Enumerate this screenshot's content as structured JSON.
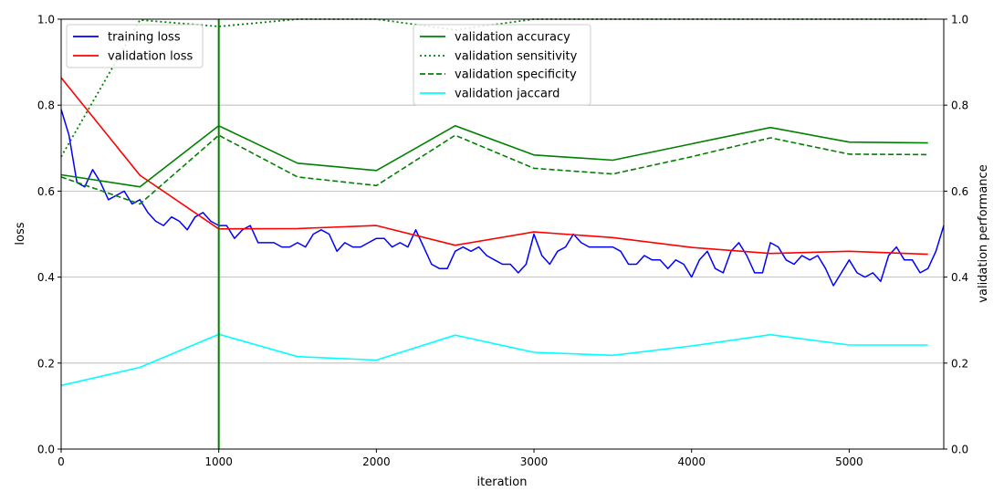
{
  "chart_data": {
    "type": "line",
    "xlabel": "iteration",
    "ylabel_left": "loss",
    "ylabel_right": "validation performance",
    "xlim": [
      0,
      5600
    ],
    "ylim_left": [
      0.0,
      1.0
    ],
    "ylim_right": [
      0.0,
      1.0
    ],
    "x_ticks": [
      "0",
      "1000",
      "2000",
      "3000",
      "4000",
      "5000"
    ],
    "y_ticks_left": [
      "0.0",
      "0.2",
      "0.4",
      "0.6",
      "0.8",
      "1.0"
    ],
    "y_ticks_right": [
      "0.0",
      "0.2",
      "0.4",
      "0.6",
      "0.8",
      "1.0"
    ],
    "grid": "horizontal",
    "marker_line_x": 1000,
    "marker_line_color": "#008000",
    "legend_left": {
      "placement": "upper-left",
      "entries": [
        "training loss",
        "validation loss"
      ]
    },
    "legend_right": {
      "placement": "upper-center",
      "entries": [
        "validation accuracy",
        "validation sensitivity",
        "validation specificity",
        "validation jaccard"
      ]
    },
    "training_loss": {
      "name": "training loss",
      "color": "#0000ff",
      "axis": "left",
      "x": [
        0,
        50,
        100,
        150,
        200,
        250,
        300,
        350,
        400,
        450,
        500,
        550,
        600,
        650,
        700,
        750,
        800,
        850,
        900,
        950,
        1000,
        1050,
        1100,
        1150,
        1200,
        1250,
        1300,
        1350,
        1400,
        1450,
        1500,
        1550,
        1600,
        1650,
        1700,
        1750,
        1800,
        1850,
        1900,
        1950,
        2000,
        2050,
        2100,
        2150,
        2200,
        2250,
        2300,
        2350,
        2400,
        2450,
        2500,
        2550,
        2600,
        2650,
        2700,
        2750,
        2800,
        2850,
        2900,
        2950,
        3000,
        3050,
        3100,
        3150,
        3200,
        3250,
        3300,
        3350,
        3400,
        3450,
        3500,
        3550,
        3600,
        3650,
        3700,
        3750,
        3800,
        3850,
        3900,
        3950,
        4000,
        4050,
        4100,
        4150,
        4200,
        4250,
        4300,
        4350,
        4400,
        4450,
        4500,
        4550,
        4600,
        4650,
        4700,
        4750,
        4800,
        4850,
        4900,
        4950,
        5000,
        5050,
        5100,
        5150,
        5200,
        5250,
        5300,
        5350,
        5400,
        5450,
        5500,
        5550,
        5600
      ],
      "y": [
        0.79,
        0.73,
        0.62,
        0.61,
        0.65,
        0.62,
        0.58,
        0.59,
        0.6,
        0.57,
        0.58,
        0.55,
        0.53,
        0.52,
        0.54,
        0.53,
        0.51,
        0.54,
        0.55,
        0.53,
        0.52,
        0.52,
        0.49,
        0.51,
        0.52,
        0.48,
        0.48,
        0.48,
        0.47,
        0.47,
        0.48,
        0.47,
        0.5,
        0.51,
        0.5,
        0.46,
        0.48,
        0.47,
        0.47,
        0.48,
        0.49,
        0.49,
        0.47,
        0.48,
        0.47,
        0.51,
        0.47,
        0.43,
        0.42,
        0.42,
        0.46,
        0.47,
        0.46,
        0.47,
        0.45,
        0.44,
        0.43,
        0.43,
        0.41,
        0.43,
        0.5,
        0.45,
        0.43,
        0.46,
        0.47,
        0.5,
        0.48,
        0.47,
        0.47,
        0.47,
        0.47,
        0.46,
        0.43,
        0.43,
        0.45,
        0.44,
        0.44,
        0.42,
        0.44,
        0.43,
        0.4,
        0.44,
        0.46,
        0.42,
        0.41,
        0.46,
        0.48,
        0.45,
        0.41,
        0.41,
        0.48,
        0.47,
        0.44,
        0.43,
        0.45,
        0.44,
        0.45,
        0.42,
        0.38,
        0.41,
        0.44,
        0.41,
        0.4,
        0.41,
        0.39,
        0.45,
        0.47,
        0.44,
        0.44,
        0.41,
        0.42,
        0.46,
        0.52
      ]
    },
    "validation_loss": {
      "name": "validation loss",
      "color": "#ff0000",
      "axis": "left",
      "x": [
        0,
        500,
        1000,
        1500,
        2000,
        2500,
        3000,
        3500,
        4000,
        4500,
        5000,
        5500
      ],
      "y": [
        0.864,
        0.637,
        0.512,
        0.513,
        0.52,
        0.474,
        0.505,
        0.492,
        0.469,
        0.455,
        0.46,
        0.453
      ]
    },
    "validation_accuracy": {
      "name": "validation accuracy",
      "color": "#008000",
      "axis": "right",
      "x": [
        0,
        500,
        1000,
        1500,
        2000,
        2500,
        3000,
        3500,
        4000,
        4500,
        5000,
        5500
      ],
      "y": [
        0.638,
        0.61,
        0.752,
        0.665,
        0.648,
        0.752,
        0.684,
        0.672,
        0.71,
        0.748,
        0.714,
        0.712
      ]
    },
    "validation_sensitivity": {
      "name": "validation sensitivity",
      "color": "#008000",
      "axis": "right",
      "x": [
        0,
        500,
        1000,
        1500,
        2000,
        2500,
        3000,
        3500,
        4000,
        4500,
        5000,
        5500
      ],
      "y": [
        0.68,
        0.998,
        0.983,
        1.0,
        1.0,
        0.975,
        1.0,
        1.0,
        1.0,
        1.0,
        1.0,
        1.0
      ]
    },
    "validation_specificity": {
      "name": "validation specificity",
      "color": "#008000",
      "axis": "right",
      "x": [
        0,
        500,
        1000,
        1500,
        2000,
        2500,
        3000,
        3500,
        4000,
        4500,
        5000,
        5500
      ],
      "y": [
        0.633,
        0.57,
        0.73,
        0.633,
        0.613,
        0.73,
        0.653,
        0.64,
        0.68,
        0.724,
        0.686,
        0.685
      ]
    },
    "validation_jaccard": {
      "name": "validation jaccard",
      "color": "#00ffff",
      "axis": "right",
      "x": [
        0,
        500,
        1000,
        1500,
        2000,
        2500,
        3000,
        3500,
        4000,
        4500,
        5000,
        5500
      ],
      "y": [
        0.148,
        0.19,
        0.267,
        0.215,
        0.207,
        0.265,
        0.225,
        0.218,
        0.24,
        0.266,
        0.242,
        0.242
      ]
    }
  }
}
